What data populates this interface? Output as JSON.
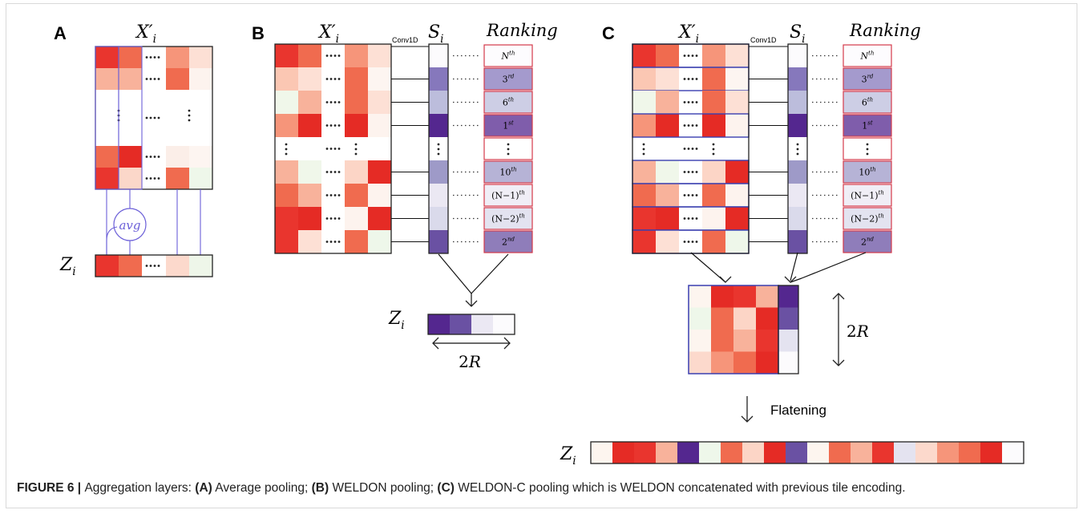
{
  "panels": {
    "A": {
      "letter": "A",
      "matrix_label": "X′",
      "matrix_sub": "i",
      "avg_label": "avg",
      "out_label": "Z",
      "out_sub": "i",
      "dots": "····",
      "vdots": "⋮",
      "colors": {
        "matrix": [
          [
            "#e9352e",
            "#f06b4f",
            null,
            "#f6957a",
            "#fde0d5"
          ],
          [
            "#f8b29b",
            "#f8b29b",
            null,
            "#f06b4f",
            "#fdf3ee"
          ],
          [
            "#f06b4f",
            "#e52b25",
            null,
            "#fbeee8",
            "#fdf5f1"
          ],
          [
            "#e9352e",
            "#fbd7c9",
            null,
            "#f06b4f",
            "#eef7ea"
          ]
        ],
        "output": [
          "#e9352e",
          "#f06b4f",
          null,
          "#fcd9cc",
          "#eef6e9"
        ]
      }
    },
    "B": {
      "letter": "B",
      "matrix_label": "X′",
      "matrix_sub": "i",
      "score_label": "S",
      "score_sub": "i",
      "ranking_label": "Ranking",
      "conv_label": "Conv1D",
      "out_label": "Z",
      "out_sub": "i",
      "width_label": "2R",
      "ranks": [
        "N",
        "3",
        "6",
        "1",
        null,
        "10",
        "(N−1)",
        "(N−2)",
        "2"
      ],
      "rank_sups": [
        "th",
        "rd",
        "th",
        "st",
        null,
        "th",
        "th",
        "th",
        "nd"
      ],
      "colors": {
        "matrix": [
          [
            "#e9352e",
            "#f06b4f",
            null,
            "#f6957a",
            "#fde0d5"
          ],
          [
            "#fbc7b3",
            "#fde0d5",
            null,
            "#f06b4f",
            "#fdf5f1"
          ],
          [
            "#f0f7ea",
            "#f8b29b",
            null,
            "#f06b4f",
            "#fde0d5"
          ],
          [
            "#f6957a",
            "#e52b25",
            null,
            "#e52b25",
            "#fdf3ee"
          ],
          null,
          [
            "#f8b29b",
            "#f0f7ea",
            null,
            "#fcd5c6",
            "#e52b25"
          ],
          [
            "#f06b4f",
            "#f8b29b",
            null,
            "#f06b4f",
            "#fdf3ee"
          ],
          [
            "#e9352e",
            "#e52b25",
            null,
            "#fdf3ee",
            "#e52b25"
          ],
          [
            "#e9352e",
            "#fde0d5",
            null,
            "#f06b4f",
            "#eef7ea"
          ]
        ],
        "scores": [
          "#fcfbfd",
          "#8678bc",
          "#bcbddc",
          "#54278f",
          null,
          "#9e9ac8",
          "#ebe8f3",
          "#dadaeb",
          "#6a51a3"
        ],
        "output": [
          "#54278f",
          "#6a51a3",
          "#ebe8f3",
          "#fcfbfd"
        ]
      }
    },
    "C": {
      "letter": "C",
      "matrix_label": "X′",
      "matrix_sub": "i",
      "score_label": "S",
      "score_sub": "i",
      "ranking_label": "Ranking",
      "conv_label": "Conv1D",
      "width_label": "2R",
      "flatten_label": "Flatening",
      "out_label": "Z",
      "out_sub": "i",
      "colors": {
        "selected": [
          [
            "#fdf5ef",
            "#e52b25",
            "#e9352e",
            "#f8b29b",
            "#54278f"
          ],
          [
            "#eef7ea",
            "#f06b4f",
            "#fcd5c6",
            "#e52b25",
            "#6a51a3"
          ],
          [
            "#fdf5ef",
            "#f06b4f",
            "#f8b29b",
            "#e9352e",
            "#e4e3f0"
          ],
          [
            "#fcd9cc",
            "#f6957a",
            "#f06b4f",
            "#e52b25",
            "#fcfbfd"
          ]
        ],
        "flat": [
          "#fdf5ef",
          "#e52b25",
          "#e9352e",
          "#f8b29b",
          "#54278f",
          "#eef7ea",
          "#f06b4f",
          "#fcd5c6",
          "#e52b25",
          "#6a51a3",
          "#fdf5ef",
          "#f06b4f",
          "#f8b29b",
          "#e9352e",
          "#e4e3f0",
          "#fcd9cc",
          "#f6957a",
          "#f06b4f",
          "#e52b25",
          "#fcfbfd"
        ]
      }
    }
  },
  "caption": {
    "prefix": "FIGURE 6 | ",
    "intro": "Aggregation layers: ",
    "a_tag": "(A)",
    "a_text": " Average pooling; ",
    "b_tag": "(B)",
    "b_text": " WELDON pooling; ",
    "c_tag": "(C)",
    "c_text": " WELDON-C pooling which is WELDON concatenated with previous tile encoding."
  },
  "accent_colors": {
    "connector": "#6b5fd8",
    "rank_border": "#d43a4a",
    "selected_border": "#3a3fb0"
  }
}
